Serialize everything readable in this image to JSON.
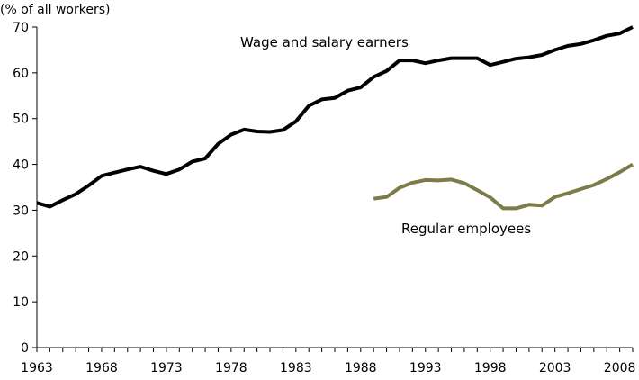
{
  "chart_data": {
    "type": "line",
    "title": "",
    "xlabel": "",
    "ylabel": "(% of all workers)",
    "xlim": [
      1963,
      2009
    ],
    "ylim": [
      0,
      70
    ],
    "x_ticks": [
      1963,
      1968,
      1973,
      1978,
      1983,
      1988,
      1993,
      1998,
      2003,
      2008
    ],
    "y_ticks": [
      0,
      10,
      20,
      30,
      40,
      50,
      60,
      70
    ],
    "grid": false,
    "legend": "none",
    "series": [
      {
        "name": "Wage and salary earners",
        "color": "#000000",
        "x": [
          1963,
          1964,
          1965,
          1966,
          1967,
          1968,
          1969,
          1970,
          1971,
          1972,
          1973,
          1974,
          1975,
          1976,
          1977,
          1978,
          1979,
          1980,
          1981,
          1982,
          1983,
          1984,
          1985,
          1986,
          1987,
          1988,
          1989,
          1990,
          1991,
          1992,
          1993,
          1994,
          1995,
          1996,
          1997,
          1998,
          1999,
          2000,
          2001,
          2002,
          2003,
          2004,
          2005,
          2006,
          2007,
          2008,
          2009
        ],
        "values": [
          31.6,
          30.8,
          32.2,
          33.5,
          35.4,
          37.5,
          38.2,
          38.9,
          39.5,
          38.6,
          37.9,
          38.9,
          40.6,
          41.3,
          44.5,
          46.5,
          47.6,
          47.2,
          47.1,
          47.5,
          49.4,
          52.8,
          54.2,
          54.5,
          56.1,
          56.8,
          59.1,
          60.4,
          62.7,
          62.7,
          62.1,
          62.7,
          63.2,
          63.2,
          63.2,
          61.7,
          62.4,
          63.1,
          63.4,
          63.9,
          65.0,
          65.9,
          66.3,
          67.1,
          68.1,
          68.6,
          70.0
        ]
      },
      {
        "name": "Regular employees",
        "color": "#7b7c4a",
        "x": [
          1989,
          1990,
          1991,
          1992,
          1993,
          1994,
          1995,
          1996,
          1997,
          1998,
          1999,
          2000,
          2001,
          2002,
          2003,
          2004,
          2005,
          2006,
          2007,
          2008,
          2009
        ],
        "values": [
          32.5,
          32.9,
          34.9,
          36.0,
          36.6,
          36.5,
          36.7,
          35.9,
          34.4,
          32.8,
          30.4,
          30.4,
          31.2,
          31.0,
          32.9,
          33.7,
          34.6,
          35.5,
          36.8,
          38.3,
          40.0
        ]
      }
    ]
  }
}
